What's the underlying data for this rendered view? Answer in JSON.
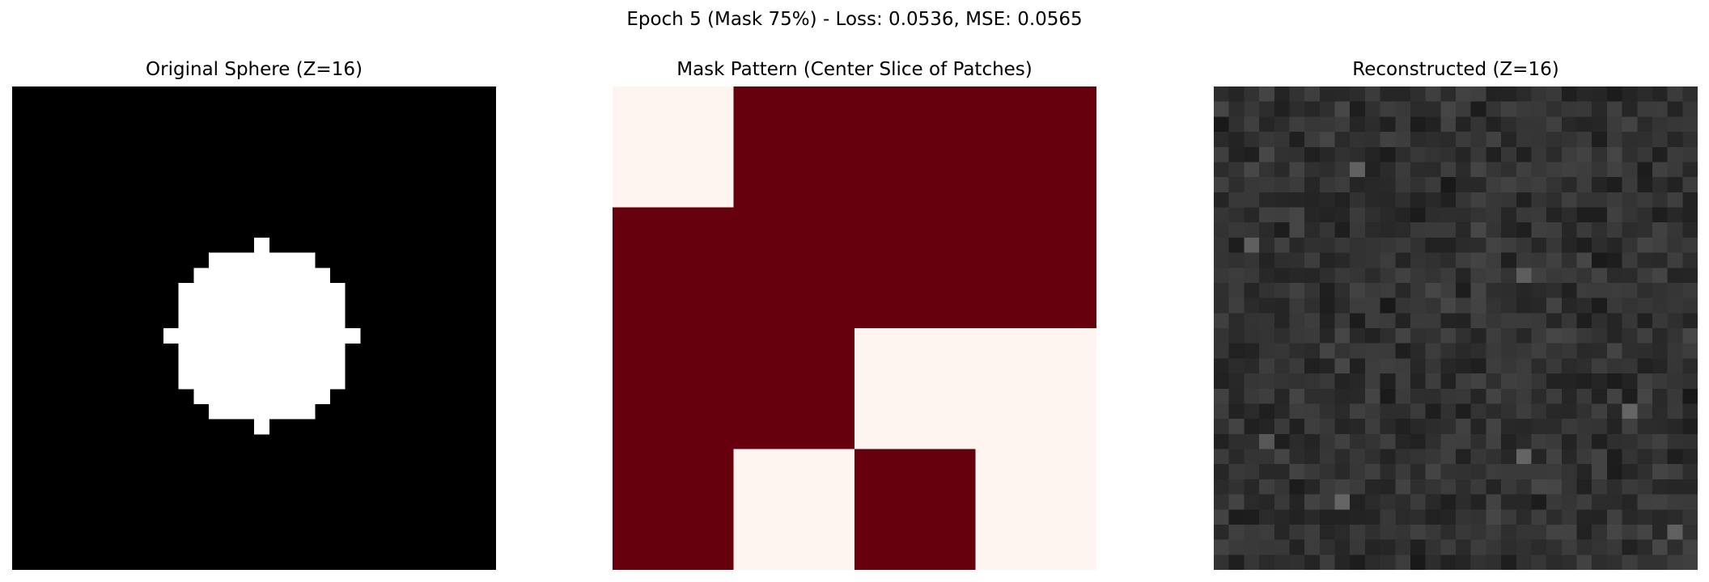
{
  "figure": {
    "suptitle": "Epoch 5 (Mask 75%) - Loss: 0.0536, MSE: 0.0565"
  },
  "chart_data": [
    {
      "type": "heatmap",
      "title": "Original Sphere (Z=16)",
      "colormap": "gray",
      "axis": "off",
      "grid": false,
      "shape": [
        32,
        32
      ],
      "value_range": [
        0,
        1
      ],
      "foreground_value": 1,
      "background_value": 0,
      "row_spans": [
        {
          "row": 10,
          "cols": [
            [
              16,
              16
            ]
          ]
        },
        {
          "row": 11,
          "cols": [
            [
              13,
              19
            ]
          ]
        },
        {
          "row": 12,
          "cols": [
            [
              12,
              20
            ]
          ]
        },
        {
          "row": 13,
          "cols": [
            [
              11,
              21
            ]
          ]
        },
        {
          "row": 14,
          "cols": [
            [
              11,
              21
            ]
          ]
        },
        {
          "row": 15,
          "cols": [
            [
              11,
              21
            ]
          ]
        },
        {
          "row": 16,
          "cols": [
            [
              10,
              22
            ]
          ]
        },
        {
          "row": 17,
          "cols": [
            [
              11,
              21
            ]
          ]
        },
        {
          "row": 18,
          "cols": [
            [
              11,
              21
            ]
          ]
        },
        {
          "row": 19,
          "cols": [
            [
              11,
              21
            ]
          ]
        },
        {
          "row": 20,
          "cols": [
            [
              12,
              20
            ]
          ]
        },
        {
          "row": 21,
          "cols": [
            [
              13,
              19
            ]
          ]
        },
        {
          "row": 22,
          "cols": [
            [
              16,
              16
            ]
          ]
        }
      ]
    },
    {
      "type": "heatmap",
      "title": "Mask Pattern (Center Slice of Patches)",
      "colormap": "Reds",
      "axis": "off",
      "grid": false,
      "shape": [
        4,
        4
      ],
      "values": [
        [
          0,
          1,
          1,
          1
        ],
        [
          1,
          1,
          1,
          1
        ],
        [
          1,
          1,
          0,
          0
        ],
        [
          1,
          0,
          1,
          0
        ]
      ],
      "colors": {
        "0": "#fff5f0",
        "1": "#67000d"
      }
    },
    {
      "type": "heatmap",
      "title": "Reconstructed (Z=16)",
      "colormap": "gray",
      "axis": "off",
      "grid": false,
      "shape": [
        32,
        32
      ],
      "value_range": [
        0,
        1
      ],
      "mean_value": 0.19,
      "value_spread": [
        0.08,
        0.4
      ]
    }
  ]
}
